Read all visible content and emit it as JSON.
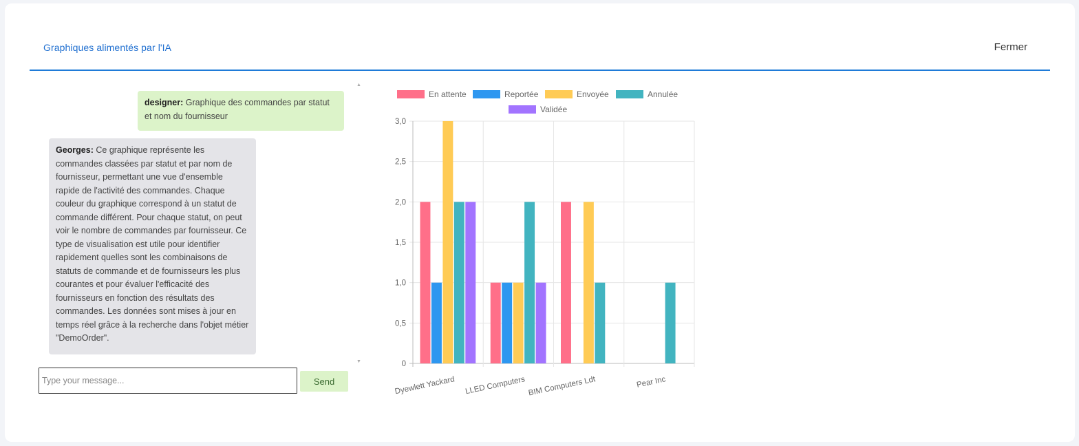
{
  "header": {
    "title": "Graphiques alimentés par l'IA",
    "close_label": "Fermer"
  },
  "chat": {
    "messages": [
      {
        "sender": "designer:",
        "text": " Graphique des commandes par statut et nom du fournisseur"
      },
      {
        "sender": "Georges:",
        "text": " Ce graphique représente les commandes classées par statut et par nom de fournisseur, permettant une vue d'ensemble rapide de l'activité des commandes. Chaque couleur du graphique correspond à un statut de commande différent. Pour chaque statut, on peut voir le nombre de commandes par fournisseur. Ce type de visualisation est utile pour identifier rapidement quelles sont les combinaisons de statuts de commande et de fournisseurs les plus courantes et pour évaluer l'efficacité des fournisseurs en fonction des résultats des commandes. Les données sont mises à jour en temps réel grâce à la recherche dans l'objet métier \"DemoOrder\"."
      }
    ],
    "input": {
      "value": "",
      "placeholder": "Type your message..."
    },
    "send_label": "Send"
  },
  "chart_data": {
    "type": "bar",
    "title": "",
    "xlabel": "",
    "ylabel": "",
    "categories": [
      "Dyewlett Yackard",
      "LLED Computers",
      "BIM Computers Ldt",
      "Pear Inc"
    ],
    "ylim": [
      0,
      3
    ],
    "yticks": [
      "0",
      "0,5",
      "1,0",
      "1,5",
      "2,0",
      "2,5",
      "3,0"
    ],
    "grid": true,
    "legend_position": "top",
    "series": [
      {
        "name": "En attente",
        "color": "#ff6f89",
        "values": [
          2,
          1,
          2,
          0
        ]
      },
      {
        "name": "Reportée",
        "color": "#2e97f0",
        "values": [
          1,
          1,
          0,
          0
        ]
      },
      {
        "name": "Envoyée",
        "color": "#ffcb55",
        "values": [
          3,
          1,
          2,
          0
        ]
      },
      {
        "name": "Annulée",
        "color": "#42b4c0",
        "values": [
          2,
          2,
          1,
          1
        ]
      },
      {
        "name": "Validée",
        "color": "#a274ff",
        "values": [
          2,
          1,
          0,
          0
        ]
      }
    ]
  }
}
